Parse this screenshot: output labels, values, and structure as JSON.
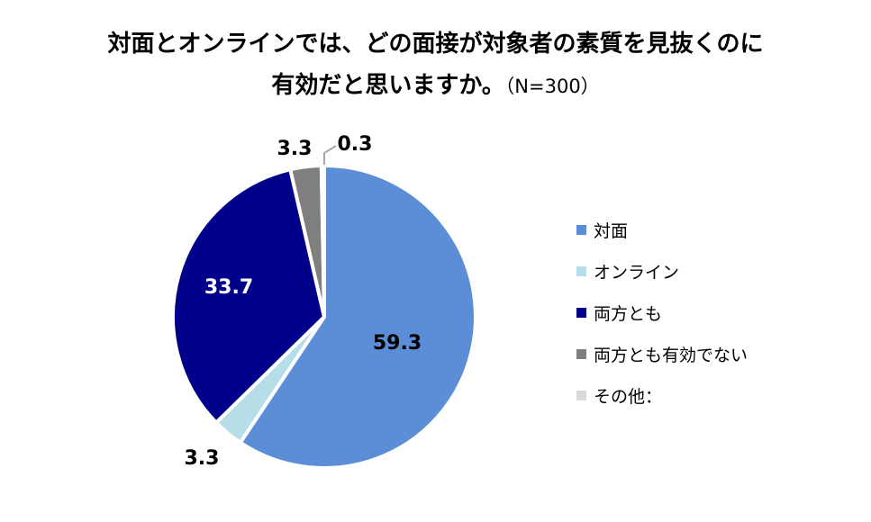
{
  "title": {
    "line1": "対面とオンラインでは、どの面接が対象者の素質を見抜くのに",
    "line2": "有効だと思いますか。",
    "n_label": "（N=300）"
  },
  "chart_data": {
    "type": "pie",
    "title": "対面とオンラインでは、どの面接が対象者の素質を見抜くのに有効だと思いますか。",
    "labels": [
      "対面",
      "オンライン",
      "両方とも",
      "両方とも有効でない",
      "その他："
    ],
    "values": [
      59.3,
      3.3,
      33.7,
      3.3,
      0.3
    ],
    "value_labels": [
      "59.3",
      "3.3",
      "33.7",
      "3.3",
      "0.3"
    ],
    "colors": [
      "#5B8ED6",
      "#B7DEE8",
      "#00008B",
      "#7F7F7F",
      "#D9D9D9"
    ],
    "label_colors": [
      "#000000",
      "#000000",
      "#ffffff",
      "#000000",
      "#000000"
    ],
    "start": "12 o'clock",
    "direction": "clockwise",
    "legend_position": "right"
  },
  "legend": [
    {
      "label": "対面",
      "color": "#5B8ED6"
    },
    {
      "label": "オンライン",
      "color": "#B7DEE8"
    },
    {
      "label": "両方とも",
      "color": "#00008B"
    },
    {
      "label": "両方とも有効でない",
      "color": "#7F7F7F"
    },
    {
      "label": "その他：",
      "color": "#D9D9D9"
    }
  ]
}
